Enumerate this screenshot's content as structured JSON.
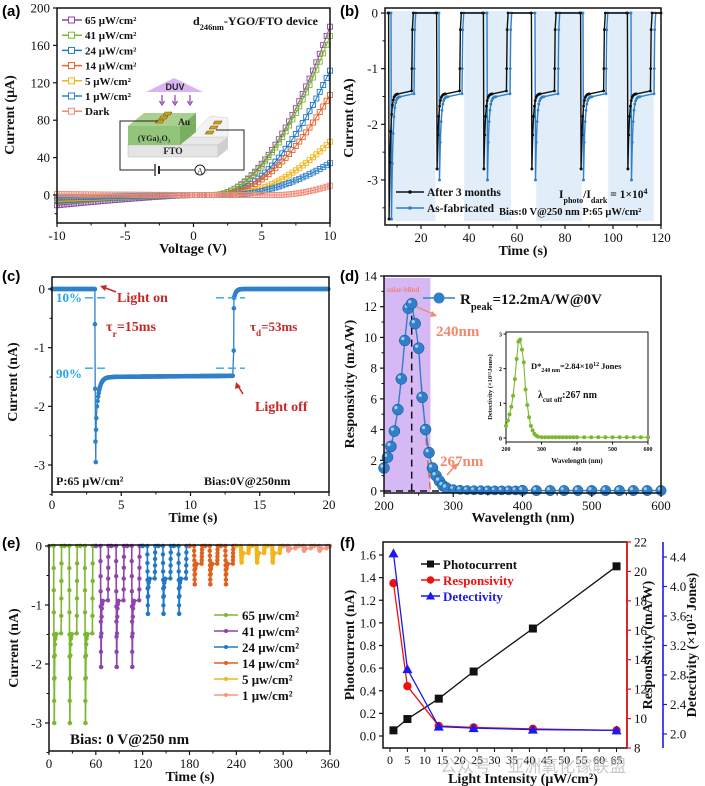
{
  "panels": {
    "a": {
      "label": "(a)"
    },
    "b": {
      "label": "(b)"
    },
    "c": {
      "label": "(c)"
    },
    "d": {
      "label": "(d)"
    },
    "e": {
      "label": "(e)"
    },
    "f": {
      "label": "(f)"
    }
  },
  "watermark": "公众号 · 亚洲氧化镓联盟",
  "chart_data": [
    {
      "id": "a",
      "type": "scatter",
      "title": "d246nm-YGO/FTO device",
      "xlabel": "Voltage (V)",
      "ylabel": "Current (μA)",
      "xlim": [
        -10,
        10
      ],
      "ylim": [
        -30,
        200
      ],
      "xticks": [
        -10,
        -5,
        0,
        5,
        10
      ],
      "yticks": [
        0,
        40,
        80,
        120,
        160,
        200
      ],
      "legend_position": "top-left",
      "series": [
        {
          "name": "65 μW/cm²",
          "color": "#8e44ad",
          "neg_end": -11,
          "onset": 1.5,
          "end": 180
        },
        {
          "name": "41 μW/cm²",
          "color": "#7cb82f",
          "neg_end": -7,
          "onset": 1.5,
          "end": 170
        },
        {
          "name": "24 μW/cm²",
          "color": "#1f78c8",
          "neg_end": -6,
          "onset": 2.0,
          "end": 133
        },
        {
          "name": "14 μW/cm²",
          "color": "#e8642c",
          "neg_end": -5,
          "onset": 2.0,
          "end": 107
        },
        {
          "name": "5 μW/cm²",
          "color": "#f2b61c",
          "neg_end": -4,
          "onset": 2.5,
          "end": 57
        },
        {
          "name": "1 μW/cm²",
          "color": "#2f80c8",
          "neg_end": -3,
          "onset": 2.5,
          "end": 34
        },
        {
          "name": "Dark",
          "color": "#f08a78",
          "neg_end": 1,
          "onset": 6.0,
          "end": 10
        }
      ],
      "inset": {
        "light_label": "DUV",
        "electrode_label": "Au",
        "layer_label": "(YGa)₂O₃",
        "substrate_label": "FTO",
        "meter_label": "A"
      }
    },
    {
      "id": "b",
      "type": "line",
      "xlabel": "Time (s)",
      "ylabel": "Current (nA)",
      "xlim": [
        5,
        120
      ],
      "ylim": [
        -3.8,
        0.1
      ],
      "xticks": [
        20,
        40,
        60,
        80,
        100,
        120
      ],
      "yticks": [
        0,
        -1,
        -2,
        -3
      ],
      "light_on_intervals": [
        [
          7,
          26
        ],
        [
          38,
          57.5
        ],
        [
          68,
          87
        ],
        [
          98,
          117
        ]
      ],
      "series": [
        {
          "name": "After 3 months",
          "color": "#111111",
          "plateau": -1.45,
          "spike": -2.8,
          "cycles_on": [
            6.5,
            26.5,
            46,
            66,
            86.5,
            106
          ]
        },
        {
          "name": "As-fabricated",
          "color": "#2f80c8",
          "plateau": -1.5,
          "spike": -3.0,
          "cycles_on": [
            7.5,
            27.5,
            47.5,
            67.5,
            87.5,
            107.5
          ]
        }
      ],
      "annotations": [
        "Iphoto/Idark = 1×10⁴",
        "Bias:0 V@250 nm  P:65 μW/cm²"
      ],
      "ratio_text": {
        "main": "I",
        "sub1": "photo",
        "mid": "/I",
        "sub2": "dark",
        "tail": " = 1×10",
        "sup": "4"
      },
      "bias_text": "Bias:0 V@250 nm  P:65 μW/cm²"
    },
    {
      "id": "c",
      "type": "line",
      "xlabel": "Time (s)",
      "ylabel": "Current (nA)",
      "xlim": [
        0,
        20
      ],
      "ylim": [
        -3.5,
        0.1
      ],
      "xticks": [
        0,
        5,
        10,
        15,
        20
      ],
      "yticks": [
        0,
        -1,
        -2,
        -3
      ],
      "light_on": 3.1,
      "light_off": 13.1,
      "plateau": -1.5,
      "spike": -2.95,
      "color": "#2f80c8",
      "annotations": {
        "light_on": "Light on",
        "light_off": "Light off",
        "rise": "τr=15ms",
        "decay": "τd=53ms",
        "p10": "10%",
        "p90": "90%",
        "power": "P:65 μW/cm²",
        "bias": "Bias:0V@250nm"
      },
      "rise_parts": {
        "a": "τ",
        "b": "r",
        "c": "=15ms"
      },
      "decay_parts": {
        "a": "τ",
        "b": "d",
        "c": "=53ms"
      }
    },
    {
      "id": "d",
      "type": "scatter",
      "xlabel": "Wavelength (nm)",
      "ylabel": "Responsivity  (mA/W)",
      "xlim": [
        200,
        600
      ],
      "ylim": [
        -0.3,
        14
      ],
      "xticks": [
        200,
        300,
        400,
        500,
        600
      ],
      "yticks": [
        0,
        2,
        4,
        6,
        8,
        10,
        12,
        14
      ],
      "shaded_region": {
        "label": "solar-blind",
        "from": 200,
        "to": 267,
        "color": "#d6b8f5"
      },
      "x": [
        200,
        205,
        210,
        215,
        220,
        225,
        230,
        235,
        240,
        245,
        250,
        255,
        260,
        265,
        270,
        275,
        280,
        285,
        290,
        300,
        310,
        320,
        330,
        340,
        350,
        360,
        370,
        380,
        390,
        400,
        420,
        440,
        460,
        480,
        500,
        520,
        540,
        560,
        580,
        600
      ],
      "y": [
        1.5,
        2.2,
        2.9,
        3.9,
        5.3,
        7.3,
        9.8,
        11.9,
        12.2,
        10.9,
        9.3,
        6.1,
        4.0,
        2.5,
        1.5,
        1.0,
        0.65,
        0.35,
        0.2,
        0.12,
        0.08,
        0.06,
        0.05,
        0.05,
        0.04,
        0.04,
        0.04,
        0.04,
        0.04,
        0.04,
        0.03,
        0.03,
        0.03,
        0.03,
        0.03,
        0.03,
        0.03,
        0.03,
        0.03,
        0.03
      ],
      "color": "#2f80c8",
      "annotations": {
        "peak": "Rpeak=12.2mA/W@0V",
        "peak_wl": "240nm",
        "cutoff_wl": "267nm"
      },
      "peak_parts": {
        "a": "R",
        "b": "peak",
        "c": "=12.2mA/W@0V"
      },
      "inset": {
        "type": "scatter",
        "xlabel": "Wavelength (nm)",
        "ylabel": "Detectivity (×10¹²Jones)",
        "xlim": [
          200,
          600
        ],
        "ylim": [
          -0.1,
          3
        ],
        "xticks": [
          200,
          300,
          400,
          500,
          600
        ],
        "yticks": [
          0,
          1,
          2,
          3
        ],
        "color": "#7cb82f",
        "x": [
          200,
          205,
          210,
          215,
          220,
          225,
          230,
          235,
          240,
          245,
          250,
          255,
          260,
          265,
          270,
          275,
          280,
          285,
          290,
          300,
          310,
          320,
          330,
          340,
          350,
          360,
          370,
          380,
          390,
          400,
          420,
          440,
          460,
          480,
          500,
          520,
          540,
          560,
          580,
          600
        ],
        "y": [
          0.35,
          0.5,
          0.68,
          0.9,
          1.22,
          1.7,
          2.28,
          2.78,
          2.84,
          2.55,
          2.18,
          1.4,
          0.95,
          0.6,
          0.35,
          0.22,
          0.12,
          0.07,
          0.04,
          0.02,
          0.02,
          0.02,
          0.02,
          0.02,
          0.02,
          0.02,
          0.02,
          0.02,
          0.02,
          0.02,
          0.02,
          0.02,
          0.02,
          0.02,
          0.02,
          0.02,
          0.02,
          0.02,
          0.02,
          0.02
        ],
        "annotations": {
          "dstar": "D*240 nm=2.84×10¹² Jones",
          "cutoff": "λcut off:267 nm"
        },
        "dstar_parts": {
          "a": "D*",
          "b": "240 nm",
          "c": "=2.84×10",
          "d": "12",
          "e": " Jones"
        },
        "cutoff_parts": {
          "a": "λ",
          "b": "cut off",
          "c": ":267 nm"
        }
      }
    },
    {
      "id": "e",
      "type": "line",
      "xlabel": "Time (s)",
      "ylabel": "Current (nA)",
      "xlim": [
        0,
        360
      ],
      "ylim": [
        -3.5,
        0.1
      ],
      "xticks": [
        0,
        60,
        120,
        180,
        240,
        300,
        360
      ],
      "yticks": [
        0,
        -1,
        -2,
        -3
      ],
      "annotation": "Bias:  0 V@250 nm",
      "legend_position": "center-right",
      "series": [
        {
          "name": "65 μw/cm²",
          "color": "#7cb82f",
          "start": 0,
          "plateau": -1.48,
          "spike": -3.0
        },
        {
          "name": "41 μw/cm²",
          "color": "#8e44ad",
          "start": 60,
          "plateau": -0.92,
          "spike": -2.05
        },
        {
          "name": "24 μw/cm²",
          "color": "#1f78c8",
          "start": 120,
          "plateau": -0.55,
          "spike": -1.15
        },
        {
          "name": "14 μw/cm²",
          "color": "#e0601c",
          "start": 180,
          "plateau": -0.3,
          "spike": -0.65
        },
        {
          "name": "5 μw/cm²",
          "color": "#f2b61c",
          "start": 240,
          "plateau": -0.12,
          "spike": -0.28
        },
        {
          "name": "1 μw/cm²",
          "color": "#f4987c",
          "start": 300,
          "plateau": -0.04,
          "spike": -0.08
        }
      ]
    },
    {
      "id": "f",
      "type": "line",
      "xlabel": "Light Intensity (μW/cm²)",
      "xlim": [
        -2,
        68
      ],
      "xticks": [
        0,
        5,
        10,
        15,
        20,
        25,
        30,
        35,
        40,
        45,
        50,
        55,
        60,
        65
      ],
      "x": [
        1,
        5,
        14,
        24,
        41,
        65
      ],
      "axes": {
        "left": {
          "label": "Photocurrent (nA)",
          "ylim": [
            -0.1,
            1.7
          ],
          "yticks": [
            0.0,
            0.2,
            0.4,
            0.6,
            0.8,
            1.0,
            1.2,
            1.4,
            1.6
          ],
          "color": "#111111"
        },
        "right1": {
          "label": "Responsivity (mA/W)",
          "ylim": [
            8,
            22
          ],
          "yticks": [
            8,
            10,
            12,
            14,
            16,
            18,
            20,
            22
          ],
          "color": "#ee1111"
        },
        "right2": {
          "label": "Detectivity (×10¹² Jones)",
          "ylim": [
            1.8,
            4.6
          ],
          "yticks": [
            2.0,
            2.4,
            2.8,
            3.2,
            3.6,
            4.0,
            4.4
          ],
          "color": "#1a1aee"
        }
      },
      "series": [
        {
          "name": "Photocurrent",
          "axis": "left",
          "marker": "square",
          "color": "#111111",
          "values": [
            0.05,
            0.15,
            0.33,
            0.57,
            0.95,
            1.5
          ]
        },
        {
          "name": "Responsivity",
          "axis": "right1",
          "marker": "circle",
          "color": "#ee1111",
          "values": [
            19.2,
            12.2,
            9.5,
            9.4,
            9.3,
            9.2
          ]
        },
        {
          "name": "Detectivity",
          "axis": "right2",
          "marker": "triangle",
          "color": "#1a1aee",
          "values": [
            4.45,
            2.88,
            2.1,
            2.08,
            2.06,
            2.05
          ]
        }
      ],
      "legend_position": "top-left"
    }
  ]
}
